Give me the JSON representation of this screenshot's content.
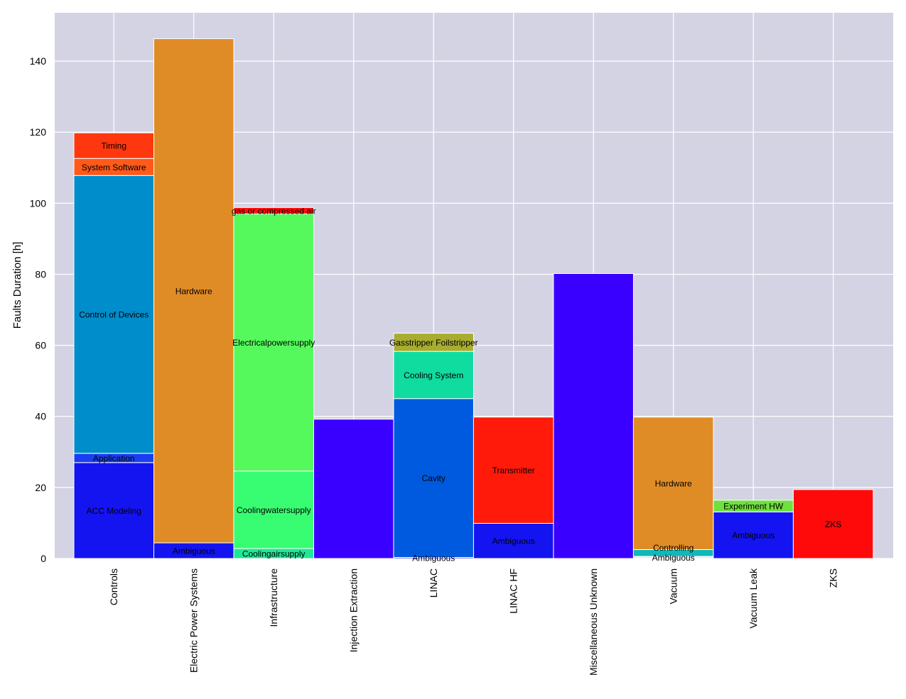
{
  "chart_data": {
    "type": "bar",
    "stacked": true,
    "title": "",
    "xlabel": "",
    "ylabel": "Faults Duration [h]",
    "ylim": [
      0,
      153.6
    ],
    "yticks": [
      0,
      20,
      40,
      60,
      80,
      100,
      120,
      140
    ],
    "grid": true,
    "legend": "none",
    "categories": [
      "Controls",
      "Electric Power Systems",
      "Infrastructure",
      "Injection Extraction",
      "LINAC",
      "LINAC HF",
      "Miscellaneous Unknown",
      "Vacuum",
      "Vacuum Leak",
      "ZKS"
    ],
    "stacks": [
      [
        {
          "label": "ACC Modeling",
          "value": 27.0,
          "color": "#1414f0"
        },
        {
          "label": "Application",
          "value": 2.6,
          "color": "#1a3ef0"
        },
        {
          "label": "Control of Devices",
          "value": 78.2,
          "color": "#008dcb"
        },
        {
          "label": "System Software",
          "value": 4.8,
          "color": "#ff5a1a"
        },
        {
          "label": "Timing",
          "value": 7.2,
          "color": "#ff370e"
        }
      ],
      [
        {
          "label": "Ambiguous",
          "value": 4.4,
          "color": "#1414f0"
        },
        {
          "label": "Hardware",
          "value": 141.9,
          "color": "#e08c26"
        }
      ],
      [
        {
          "label": "Coolingairsupply",
          "value": 2.8,
          "color": "#1ee896"
        },
        {
          "label": "Coolingwatersupply",
          "value": 21.8,
          "color": "#38fd72"
        },
        {
          "label": "Electricalpowersupply",
          "value": 72.4,
          "color": "#55f95c"
        },
        {
          "label": "gas or compressed air",
          "value": 1.8,
          "color": "#ff1010"
        }
      ],
      [
        {
          "label": "",
          "value": 39.2,
          "color": "#3a00ff"
        }
      ],
      [
        {
          "label": "Ambiguous",
          "value": 0.3,
          "color": "#1414f0"
        },
        {
          "label": "Cavity",
          "value": 44.7,
          "color": "#005adf"
        },
        {
          "label": "Cooling System",
          "value": 13.3,
          "color": "#10dca0"
        },
        {
          "label": "Gasstripper Foilstripper",
          "value": 5.1,
          "color": "#a8ac30"
        }
      ],
      [
        {
          "label": "Ambiguous",
          "value": 9.9,
          "color": "#1414f0"
        },
        {
          "label": "Transmitter",
          "value": 29.9,
          "color": "#ff1a0a"
        }
      ],
      [
        {
          "label": "",
          "value": 80.2,
          "color": "#3a00ff"
        }
      ],
      [
        {
          "label": "Ambiguous",
          "value": 0.6,
          "color": "#e8eaf8"
        },
        {
          "label": "Controlling",
          "value": 1.9,
          "color": "#10b8b8"
        },
        {
          "label": "Hardware",
          "value": 37.3,
          "color": "#e08c26"
        }
      ],
      [
        {
          "label": "Ambiguous",
          "value": 13.1,
          "color": "#1414f0"
        },
        {
          "label": "Experiment HW",
          "value": 3.3,
          "color": "#70e040"
        }
      ],
      [
        {
          "label": "ZKS",
          "value": 19.4,
          "color": "#ff0a0a"
        }
      ]
    ]
  }
}
